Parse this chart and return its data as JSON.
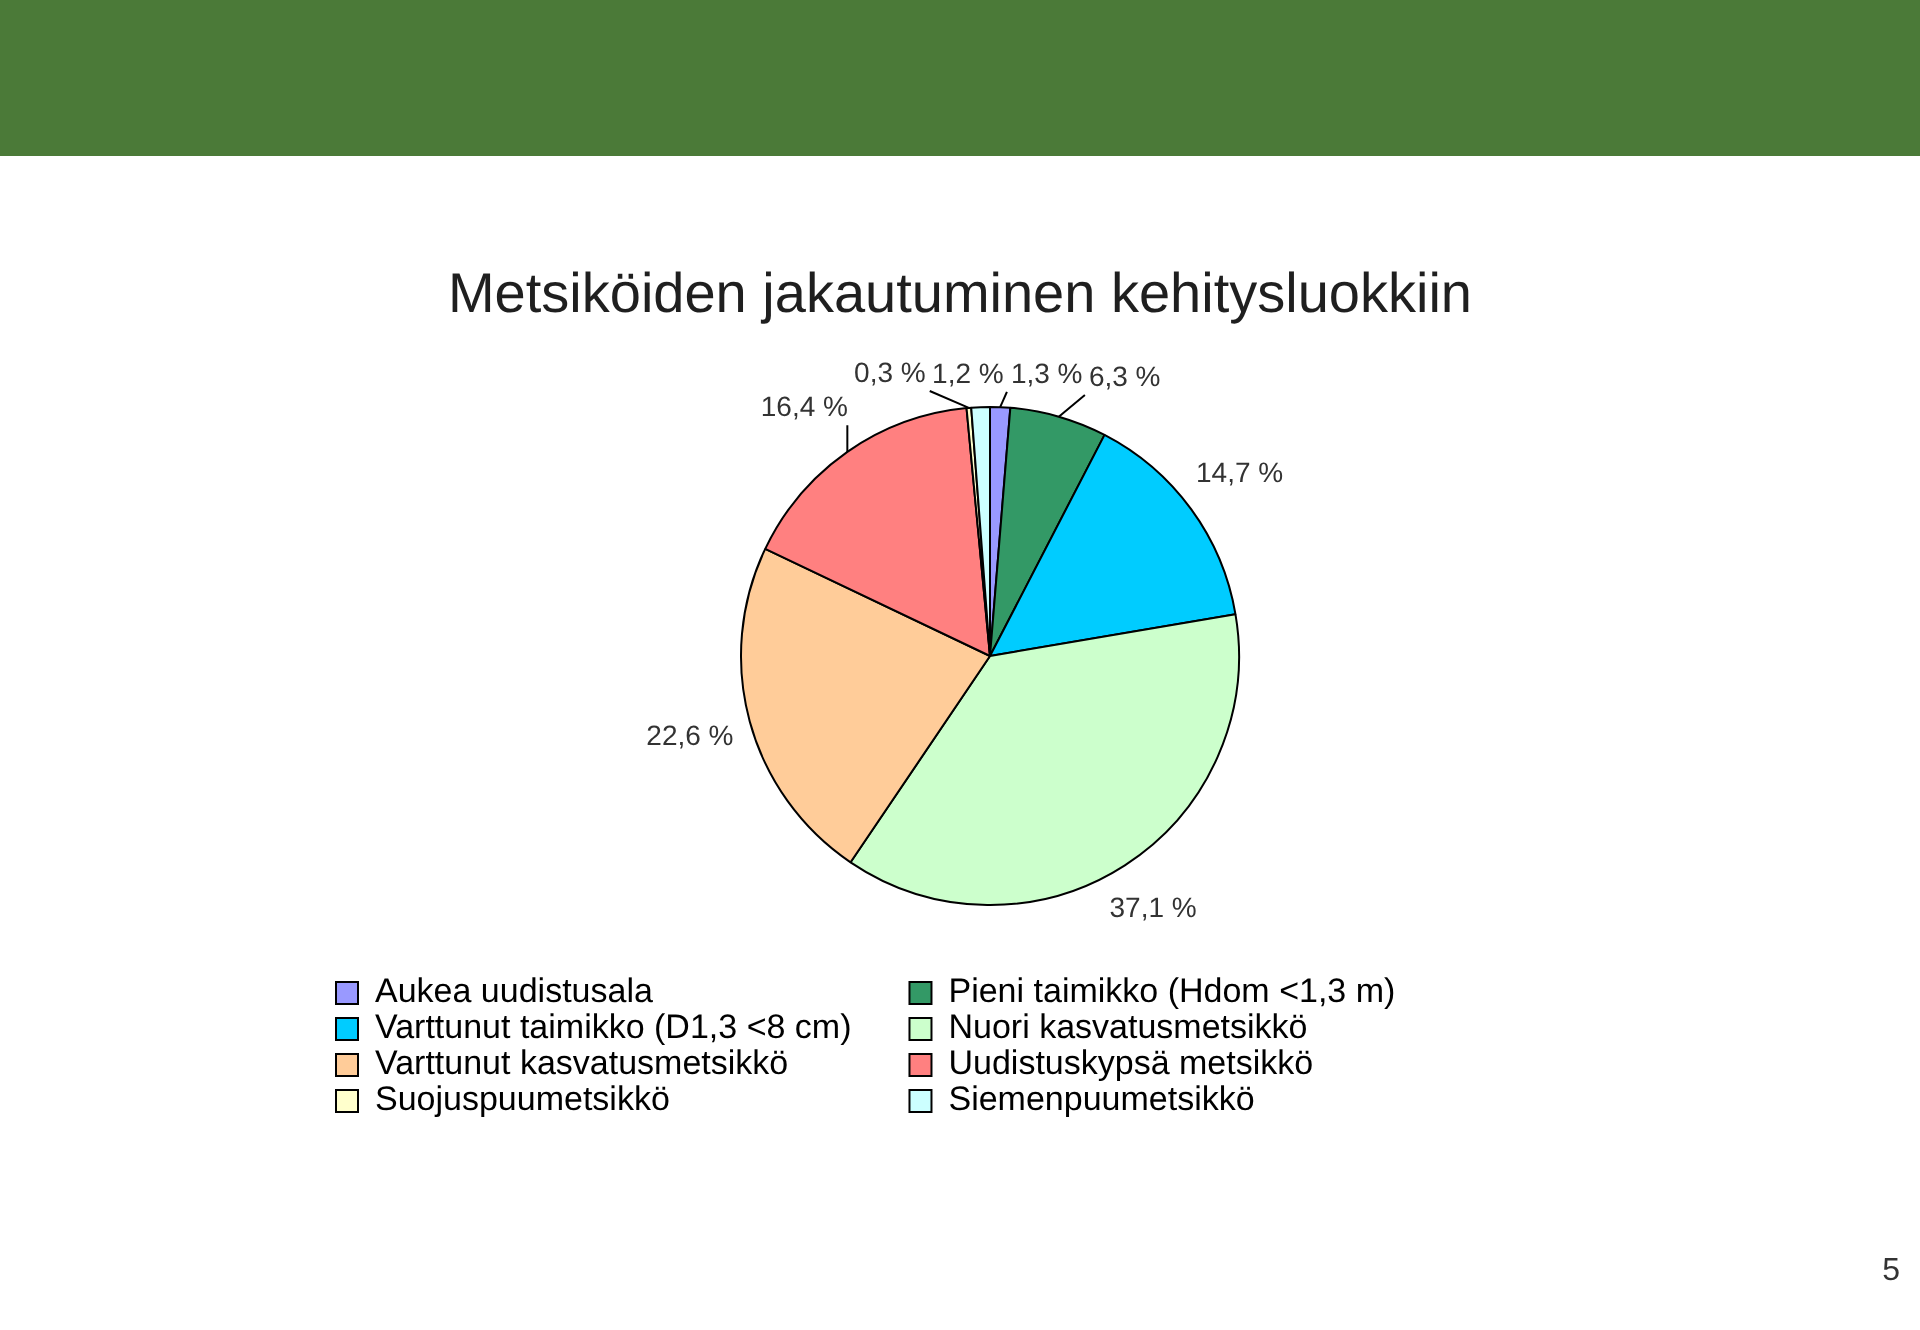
{
  "chart_data": {
    "type": "pie",
    "title": "Metsiköiden jakautuminen kehitysluokkiin",
    "categories": [
      "Aukea uudistusala",
      "Pieni taimikko (Hdom <1,3 m)",
      "Varttunut taimikko (D1,3 <8 cm)",
      "Nuori kasvatusmetsikkö",
      "Varttunut kasvatusmetsikkö",
      "Uudistuskypsä metsikkö",
      "Suojuspuumetsikkö",
      "Siemenpuumetsikkö"
    ],
    "values": [
      1.3,
      6.3,
      14.7,
      37.1,
      22.6,
      16.4,
      0.3,
      1.2
    ],
    "colors": [
      "#9999ff",
      "#339966",
      "#00ccff",
      "#ccffcc",
      "#ffcc99",
      "#ff8080",
      "#ffffcc",
      "#ccffff"
    ],
    "value_labels": [
      "1,3 %",
      "6,3 %",
      "14,7 %",
      "37,1 %",
      "22,6 %",
      "16,4 %",
      "0,3 %",
      "1,2 %"
    ],
    "legend": "bottom",
    "annotations": [
      "5"
    ]
  }
}
